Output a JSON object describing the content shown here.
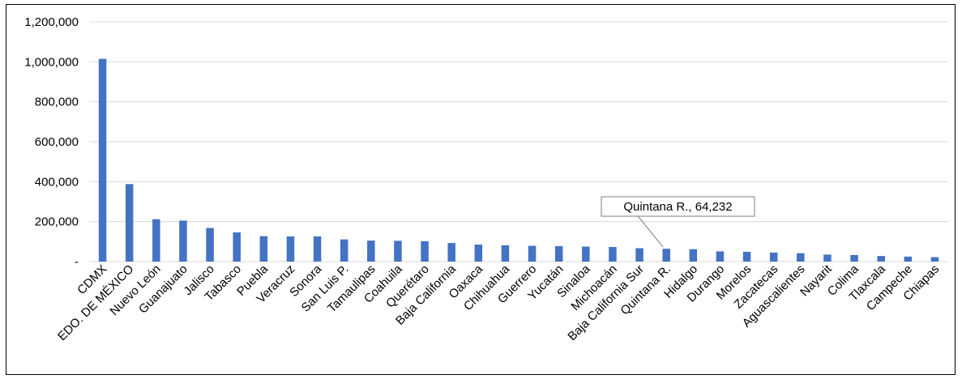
{
  "chart_data": {
    "type": "bar",
    "title": "",
    "xlabel": "",
    "ylabel": "",
    "ylim": [
      0,
      1200000
    ],
    "y_ticks": [
      0,
      200000,
      400000,
      600000,
      800000,
      1000000,
      1200000
    ],
    "y_tick_labels": [
      "-",
      "200,000",
      "400,000",
      "600,000",
      "800,000",
      "1,000,000",
      "1,200,000"
    ],
    "grid": "horizontal",
    "bar_color": "#4472C4",
    "categories": [
      "CDMX",
      "EDO. DE MÉXICO",
      "Nuevo León",
      "Guanajuato",
      "Jalisco",
      "Tabasco",
      "Puebla",
      "Veracruz",
      "Sonora",
      "San Luis P.",
      "Tamaulipas",
      "Coahuila",
      "Querétaro",
      "Baja California",
      "Oaxaca",
      "Chihuahua",
      "Guerrero",
      "Yucatán",
      "Sinaloa",
      "Michoacán",
      "Baja California Sur",
      "Quintana R.",
      "Hidalgo",
      "Durango",
      "Morelos",
      "Zacatecas",
      "Aguascalientes",
      "Nayarit",
      "Colima",
      "Tlaxcala",
      "Campeche",
      "Chiapas"
    ],
    "values": [
      1015000,
      388000,
      212000,
      205000,
      168000,
      146000,
      127000,
      126000,
      126000,
      111000,
      105000,
      104000,
      102000,
      93000,
      85000,
      82000,
      79000,
      77000,
      75000,
      73000,
      67000,
      64232,
      62000,
      51000,
      49000,
      45000,
      42000,
      35000,
      33000,
      28000,
      25000,
      22000
    ],
    "annotation": {
      "category": "Quintana R.",
      "text": "Quintana R.,  64,232"
    }
  }
}
